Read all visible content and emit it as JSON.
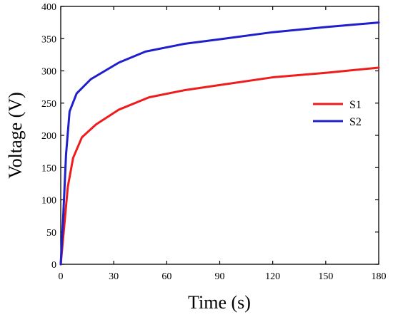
{
  "chart_data": {
    "type": "line",
    "title": "",
    "xlabel": "Time (s)",
    "ylabel": "Voltage (V)",
    "xlim": [
      0,
      180
    ],
    "ylim": [
      0,
      400
    ],
    "xticks": [
      0,
      30,
      60,
      90,
      120,
      150,
      180
    ],
    "yticks": [
      0,
      50,
      100,
      150,
      200,
      250,
      300,
      350,
      400
    ],
    "grid": false,
    "legend_position": "right",
    "series": [
      {
        "name": "S1",
        "color": "#ee1c1c",
        "x": [
          0,
          2,
          4,
          7,
          12,
          20,
          33,
          50,
          70,
          90,
          120,
          150,
          180
        ],
        "y": [
          0,
          60,
          120,
          165,
          197,
          217,
          240,
          259,
          270,
          278,
          290,
          297,
          305
        ]
      },
      {
        "name": "S2",
        "color": "#1f1fcc",
        "x": [
          0,
          1.5,
          3,
          5,
          9,
          17,
          33,
          48,
          70,
          90,
          120,
          150,
          180
        ],
        "y": [
          0,
          80,
          170,
          237,
          265,
          287,
          313,
          330,
          342,
          349,
          360,
          368,
          375
        ]
      }
    ]
  }
}
